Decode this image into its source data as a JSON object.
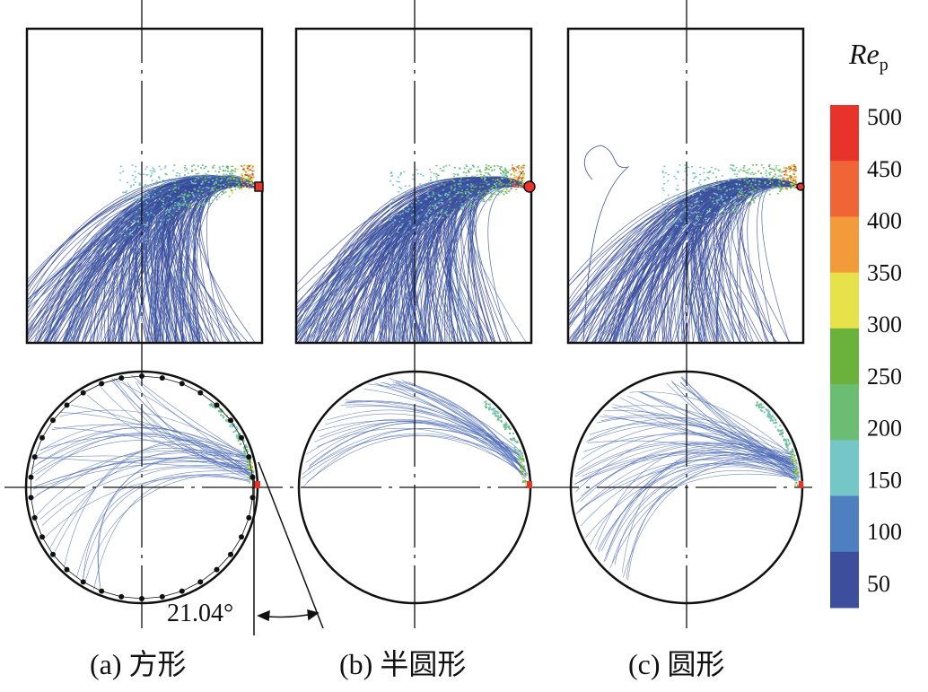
{
  "panels": [
    {
      "caption": "(a) 方形",
      "outlet": "square"
    },
    {
      "caption": "(b) 半圆形",
      "outlet": "semicircle"
    },
    {
      "caption": "(c) 圆形",
      "outlet": "circle"
    }
  ],
  "colorbar": {
    "title_main": "Re",
    "title_sub": "p",
    "ticks": [
      "500",
      "450",
      "400",
      "350",
      "300",
      "250",
      "200",
      "150",
      "100",
      "50"
    ],
    "colors": [
      "#e8332a",
      "#ef6535",
      "#f39a3a",
      "#e7e24a",
      "#6ab23c",
      "#6cbd74",
      "#74c7c6",
      "#4e7fc0",
      "#3d4f9c"
    ]
  },
  "annotation": {
    "angle": "21.04°"
  }
}
